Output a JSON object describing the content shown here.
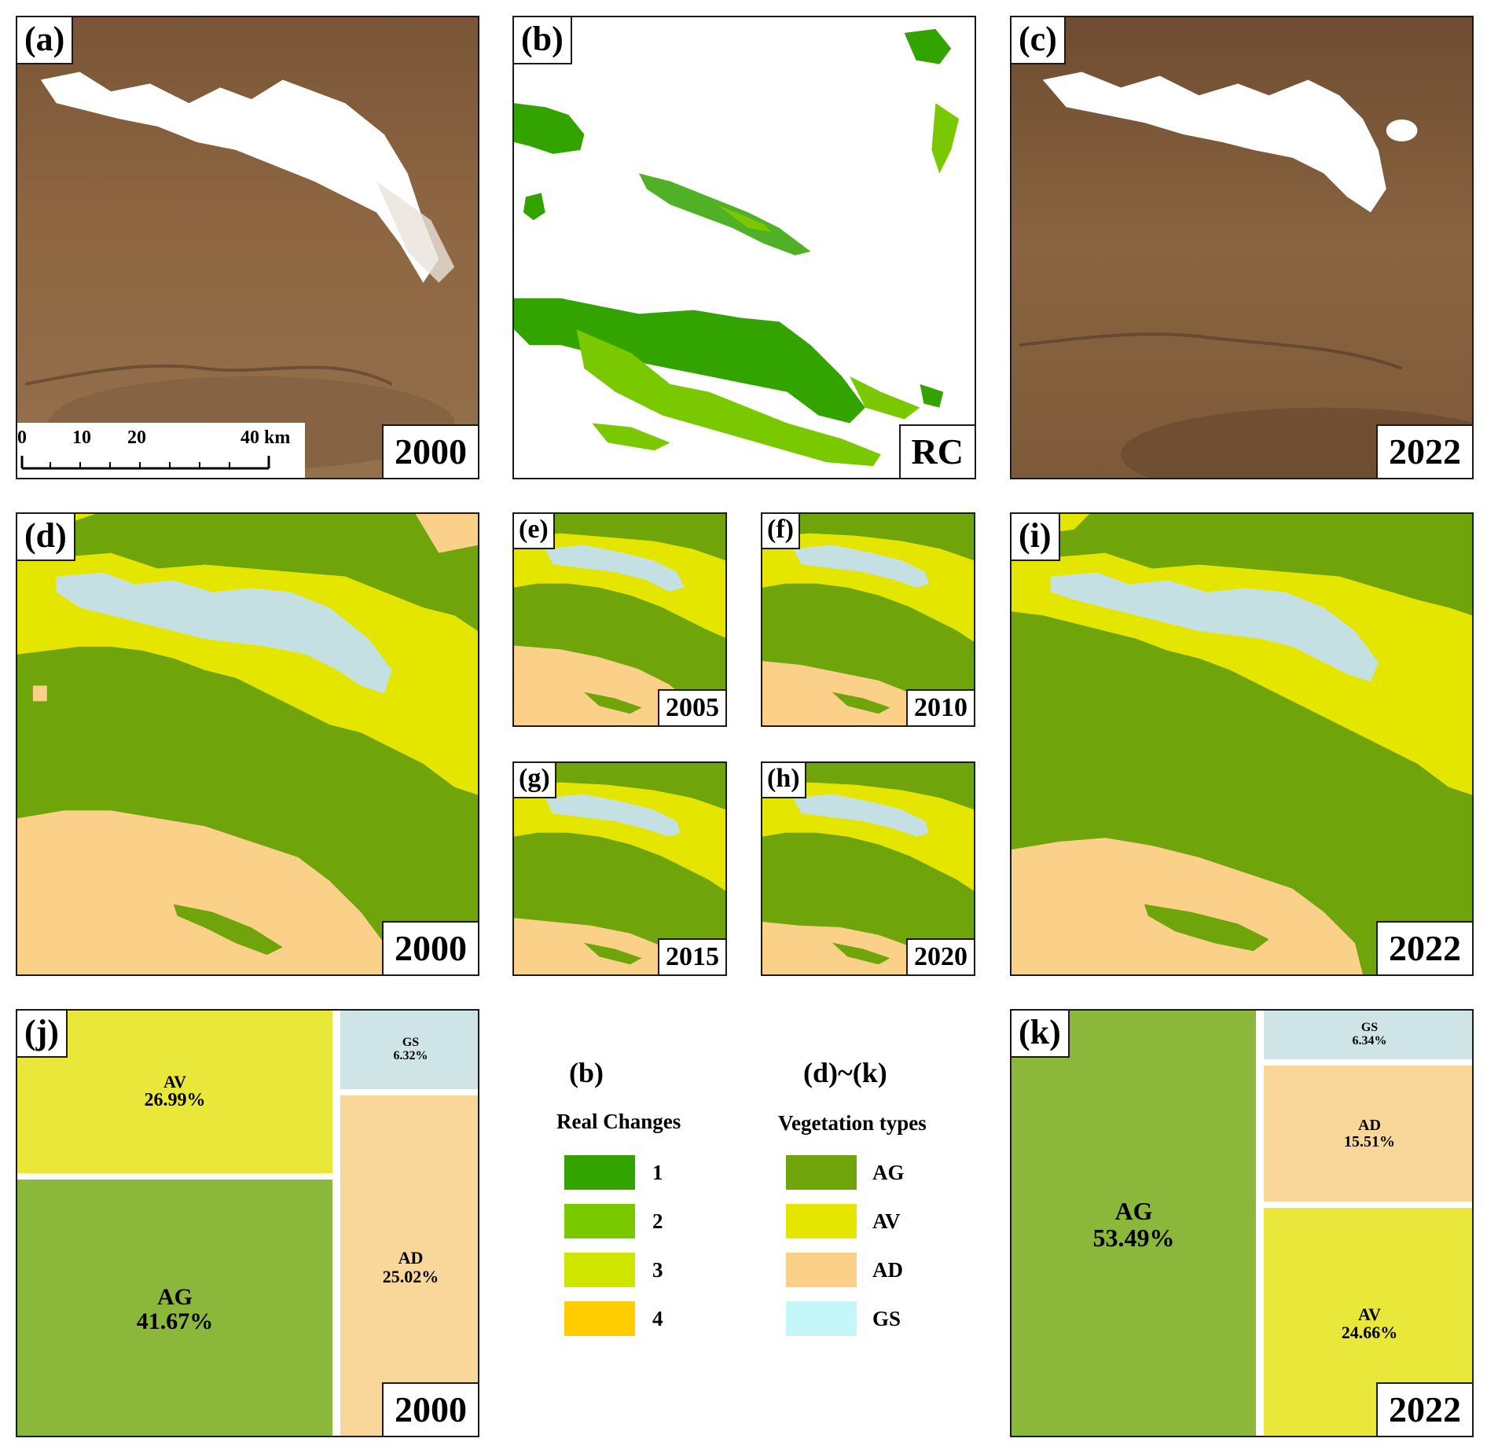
{
  "panels": {
    "a": {
      "label": "(a)",
      "year": "2000"
    },
    "b": {
      "label": "(b)",
      "year": "RC"
    },
    "c": {
      "label": "(c)",
      "year": "2022"
    },
    "d": {
      "label": "(d)",
      "year": "2000"
    },
    "e": {
      "label": "(e)",
      "year": "2005"
    },
    "f": {
      "label": "(f)",
      "year": "2010"
    },
    "g": {
      "label": "(g)",
      "year": "2015"
    },
    "h": {
      "label": "(h)",
      "year": "2020"
    },
    "i": {
      "label": "(i)",
      "year": "2022"
    },
    "j": {
      "label": "(j)",
      "year": "2000"
    },
    "k": {
      "label": "(k)",
      "year": "2022"
    }
  },
  "scale_bar": {
    "ticks": [
      "0",
      "10",
      "20",
      "40 km"
    ]
  },
  "treemap_2000": [
    {
      "name": "AV",
      "value": "26.99%"
    },
    {
      "name": "AG",
      "value": "41.67%"
    },
    {
      "name": "GS",
      "value": "6.32%"
    },
    {
      "name": "AD",
      "value": "25.02%"
    }
  ],
  "treemap_2022": [
    {
      "name": "AG",
      "value": "53.49%"
    },
    {
      "name": "GS",
      "value": "6.34%"
    },
    {
      "name": "AD",
      "value": "15.51%"
    },
    {
      "name": "AV",
      "value": "24.66%"
    }
  ],
  "legend_b": {
    "panel_ref": "(b)",
    "title": "Real Changes",
    "items": [
      {
        "label": "1",
        "color": "#33a300"
      },
      {
        "label": "2",
        "color": "#79c800"
      },
      {
        "label": "3",
        "color": "#cfe600"
      },
      {
        "label": "4",
        "color": "#ffcc00"
      }
    ]
  },
  "legend_dk": {
    "panel_ref": "(d)~(k)",
    "title": "Vegetation types",
    "items": [
      {
        "label": "AG",
        "color": "#6fa40a"
      },
      {
        "label": "AV",
        "color": "#e5e600"
      },
      {
        "label": "AD",
        "color": "#fbd18a"
      },
      {
        "label": "GS",
        "color": "#c5f6f8"
      }
    ]
  },
  "colors": {
    "AG": "#6fa40a",
    "AV": "#e5e600",
    "AD": "#fbd18a",
    "GS": "#c5e0e3",
    "tree_AG": "#8bb83a",
    "tree_AV": "#e9e83a",
    "tree_AD": "#f9d79b",
    "tree_GS": "#cfe4e6",
    "terrain": "#8a6240",
    "snow": "#ffffff"
  }
}
